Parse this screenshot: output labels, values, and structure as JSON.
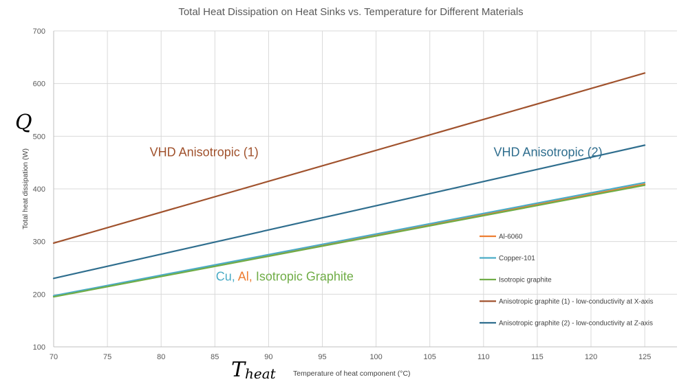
{
  "chart_data": {
    "type": "line",
    "title": "Total Heat Dissipation on Heat Sinks vs. Temperature for Different Materials",
    "xlabel": "Temperature of heat component (°C)",
    "ylabel": "Total heat dissipation (W)",
    "x_symbol_main": "T",
    "x_symbol_sub": "heat",
    "y_symbol": "Q",
    "xlim": [
      70,
      128
    ],
    "ylim": [
      100,
      700
    ],
    "x_ticks": [
      70,
      75,
      80,
      85,
      90,
      95,
      100,
      105,
      110,
      115,
      120,
      125
    ],
    "y_ticks": [
      100,
      200,
      300,
      400,
      500,
      600,
      700
    ],
    "grid": true,
    "legend_position": "right",
    "series": [
      {
        "name": "Al-6060",
        "color": "#ED7D31",
        "x": [
          70,
          125
        ],
        "y": [
          196,
          409
        ]
      },
      {
        "name": "Copper-101",
        "color": "#4BACC6",
        "x": [
          70,
          125
        ],
        "y": [
          197,
          412
        ]
      },
      {
        "name": "Isotropic graphite",
        "color": "#70AD47",
        "x": [
          70,
          125
        ],
        "y": [
          195,
          407
        ]
      },
      {
        "name": "Anisotropic graphite (1) - low-conductivity at X-axis",
        "color": "#A0522D",
        "x": [
          70,
          125
        ],
        "y": [
          297,
          620
        ]
      },
      {
        "name": "Anisotropic graphite (2) - low-conductivity at Z-axis",
        "color": "#2F6E8E",
        "x": [
          70,
          125
        ],
        "y": [
          230,
          483
        ]
      }
    ],
    "annotations": [
      {
        "text": "VHD Anisotropic (1)",
        "color": "#A0522D",
        "x": 84,
        "y": 462
      },
      {
        "text": "VHD Anisotropic (2)",
        "color": "#2F6E8E",
        "x": 116,
        "y": 462
      }
    ],
    "group_annotation": {
      "x": 91.5,
      "y": 226,
      "parts": [
        {
          "text": "Cu,",
          "color": "#4BACC6"
        },
        {
          "text": " Al,",
          "color": "#ED7D31"
        },
        {
          "text": " Isotropic Graphite",
          "color": "#70AD47"
        }
      ]
    }
  }
}
